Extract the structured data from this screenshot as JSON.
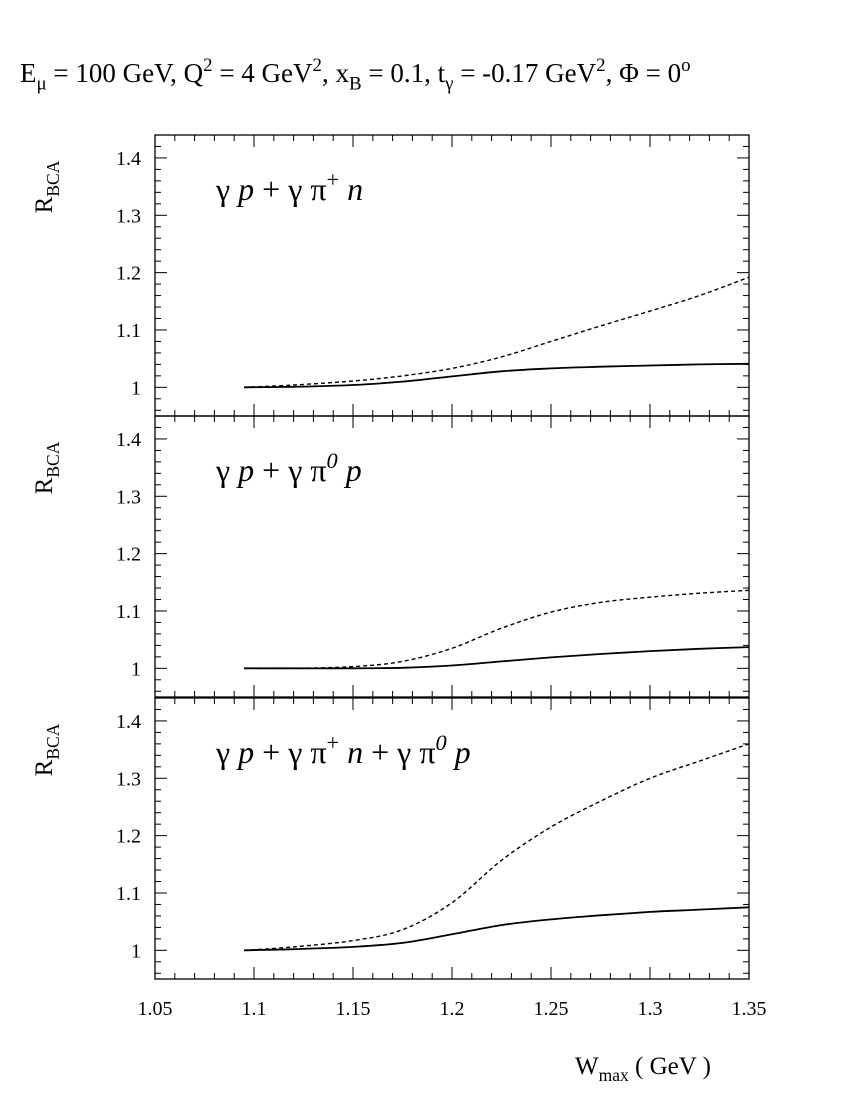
{
  "title": {
    "parts": [
      {
        "t": "E"
      },
      {
        "t": "μ",
        "sub": true
      },
      {
        "t": " = 100 GeV, Q"
      },
      {
        "t": "2",
        "sup": true
      },
      {
        "t": " = 4 GeV"
      },
      {
        "t": "2",
        "sup": true
      },
      {
        "t": ", x"
      },
      {
        "t": "B",
        "sub": true
      },
      {
        "t": " = 0.1, t"
      },
      {
        "t": "γ",
        "sub": true
      },
      {
        "t": " = -0.17 GeV"
      },
      {
        "t": "2",
        "sup": true
      },
      {
        "t": ", Φ = 0"
      },
      {
        "t": "o",
        "sup": true
      }
    ]
  },
  "xlabel": {
    "main": "W",
    "sub": "max",
    "rest": " ( GeV )"
  },
  "ylabel": {
    "main": "R",
    "sub": "BCA"
  },
  "colors": {
    "axis": "#000000",
    "line": "#000000",
    "background": "#ffffff"
  },
  "chart_data": [
    {
      "type": "line",
      "annotation": [
        {
          "t": "γ "
        },
        {
          "t": "p",
          "it": true
        },
        {
          "t": " + γ π"
        },
        {
          "t": "+",
          "sup": true
        },
        {
          "t": " "
        },
        {
          "t": "n",
          "it": true
        }
      ],
      "xlim": [
        1.05,
        1.35
      ],
      "ylim": [
        0.95,
        1.44
      ],
      "xticks": [
        "1.05",
        "1.1",
        "1.15",
        "1.2",
        "1.25",
        "1.3",
        "1.35"
      ],
      "yticks": [
        "1",
        "1.1",
        "1.2",
        "1.3",
        "1.4"
      ],
      "grid": false,
      "series": [
        {
          "style": "solid",
          "x": [
            1.095,
            1.12,
            1.15,
            1.175,
            1.2,
            1.225,
            1.25,
            1.275,
            1.3,
            1.325,
            1.35
          ],
          "y": [
            1.0,
            1.001,
            1.004,
            1.01,
            1.019,
            1.028,
            1.033,
            1.036,
            1.038,
            1.04,
            1.041
          ]
        },
        {
          "style": "dashed",
          "x": [
            1.095,
            1.12,
            1.15,
            1.175,
            1.2,
            1.225,
            1.25,
            1.275,
            1.3,
            1.325,
            1.35
          ],
          "y": [
            1.0,
            1.004,
            1.011,
            1.02,
            1.033,
            1.053,
            1.08,
            1.107,
            1.133,
            1.16,
            1.192
          ]
        }
      ]
    },
    {
      "type": "line",
      "annotation": [
        {
          "t": "γ "
        },
        {
          "t": "p",
          "it": true
        },
        {
          "t": " + γ π"
        },
        {
          "t": "0",
          "sup": true,
          "it": true
        },
        {
          "t": " "
        },
        {
          "t": "p",
          "it": true
        }
      ],
      "xlim": [
        1.05,
        1.35
      ],
      "ylim": [
        0.95,
        1.44
      ],
      "xticks": [
        "1.05",
        "1.1",
        "1.15",
        "1.2",
        "1.25",
        "1.3",
        "1.35"
      ],
      "yticks": [
        "1",
        "1.1",
        "1.2",
        "1.3",
        "1.4"
      ],
      "grid": false,
      "series": [
        {
          "style": "solid",
          "x": [
            1.095,
            1.12,
            1.15,
            1.175,
            1.2,
            1.225,
            1.25,
            1.275,
            1.3,
            1.325,
            1.35
          ],
          "y": [
            1.0,
            1.0,
            1.0,
            1.001,
            1.005,
            1.012,
            1.019,
            1.025,
            1.03,
            1.034,
            1.037
          ]
        },
        {
          "style": "dashed",
          "x": [
            1.095,
            1.12,
            1.15,
            1.175,
            1.2,
            1.225,
            1.25,
            1.275,
            1.3,
            1.325,
            1.35
          ],
          "y": [
            1.0,
            1.0,
            1.003,
            1.012,
            1.035,
            1.07,
            1.098,
            1.115,
            1.124,
            1.131,
            1.136
          ]
        }
      ]
    },
    {
      "type": "line",
      "annotation": [
        {
          "t": "γ "
        },
        {
          "t": "p",
          "it": true
        },
        {
          "t": " + γ π"
        },
        {
          "t": "+",
          "sup": true
        },
        {
          "t": " "
        },
        {
          "t": "n",
          "it": true
        },
        {
          "t": " + γ π"
        },
        {
          "t": "0",
          "sup": true,
          "it": true
        },
        {
          "t": " "
        },
        {
          "t": "p",
          "it": true
        }
      ],
      "xlim": [
        1.05,
        1.35
      ],
      "ylim": [
        0.95,
        1.44
      ],
      "xticks": [
        "1.05",
        "1.1",
        "1.15",
        "1.2",
        "1.25",
        "1.3",
        "1.35"
      ],
      "yticks": [
        "1",
        "1.1",
        "1.2",
        "1.3",
        "1.4"
      ],
      "grid": false,
      "series": [
        {
          "style": "solid",
          "x": [
            1.095,
            1.12,
            1.15,
            1.175,
            1.2,
            1.225,
            1.25,
            1.275,
            1.3,
            1.325,
            1.35
          ],
          "y": [
            1.0,
            1.002,
            1.006,
            1.013,
            1.028,
            1.044,
            1.054,
            1.061,
            1.067,
            1.071,
            1.075
          ]
        },
        {
          "style": "dashed",
          "x": [
            1.095,
            1.12,
            1.15,
            1.175,
            1.2,
            1.225,
            1.25,
            1.275,
            1.3,
            1.325,
            1.35
          ],
          "y": [
            1.0,
            1.006,
            1.017,
            1.036,
            1.083,
            1.157,
            1.215,
            1.26,
            1.3,
            1.33,
            1.36
          ]
        }
      ]
    }
  ]
}
